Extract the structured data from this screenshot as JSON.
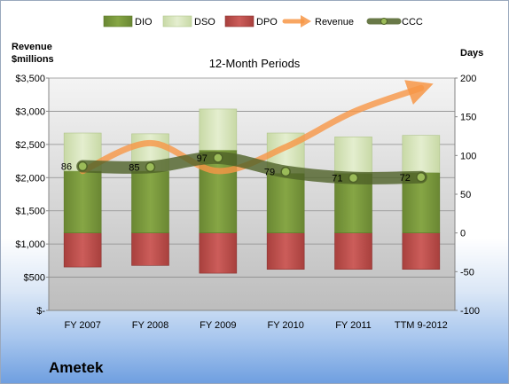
{
  "company_name": "Ametek",
  "chart_data": {
    "type": "bar",
    "title": "12-Month Periods",
    "ylabel_left": "Revenue\n$millions",
    "ylabel_right": "Days",
    "categories": [
      "FY 2007",
      "FY 2008",
      "FY 2009",
      "FY 2010",
      "FY 2011",
      "TTM 9-2012"
    ],
    "ylim_left": [
      0,
      3500
    ],
    "ylim_right": [
      -100,
      200
    ],
    "left_ticks": [
      "$-",
      "$500",
      "$1,000",
      "$1,500",
      "$2,000",
      "$2,500",
      "$3,000",
      "$3,500"
    ],
    "right_ticks": [
      "-100",
      "-50",
      "0",
      "50",
      "100",
      "150",
      "200"
    ],
    "legend_position": "top",
    "series": [
      {
        "name": "DIO",
        "type": "stacked-bar",
        "axis": "right",
        "color": "#77933c",
        "values": [
          80,
          80,
          107,
          77,
          77,
          78
        ]
      },
      {
        "name": "DSO",
        "type": "stacked-bar",
        "axis": "right",
        "color": "#d7e4bd",
        "values": [
          49,
          48,
          53,
          52,
          47,
          48
        ]
      },
      {
        "name": "DPO",
        "type": "bar-negative",
        "axis": "right",
        "color": "#c0504d",
        "values": [
          -44,
          -42,
          -52,
          -47,
          -47,
          -47
        ]
      },
      {
        "name": "Revenue",
        "type": "line",
        "axis": "left",
        "color": "#f79646",
        "values": [
          2100,
          2520,
          2100,
          2460,
          2990,
          3350
        ]
      },
      {
        "name": "CCC",
        "type": "line",
        "axis": "right",
        "color": "#4f6228",
        "values": [
          86,
          85,
          97,
          79,
          71,
          72
        ]
      }
    ],
    "ccc_labels": [
      "86",
      "85",
      "97",
      "79",
      "71",
      "72"
    ],
    "grid": true
  }
}
